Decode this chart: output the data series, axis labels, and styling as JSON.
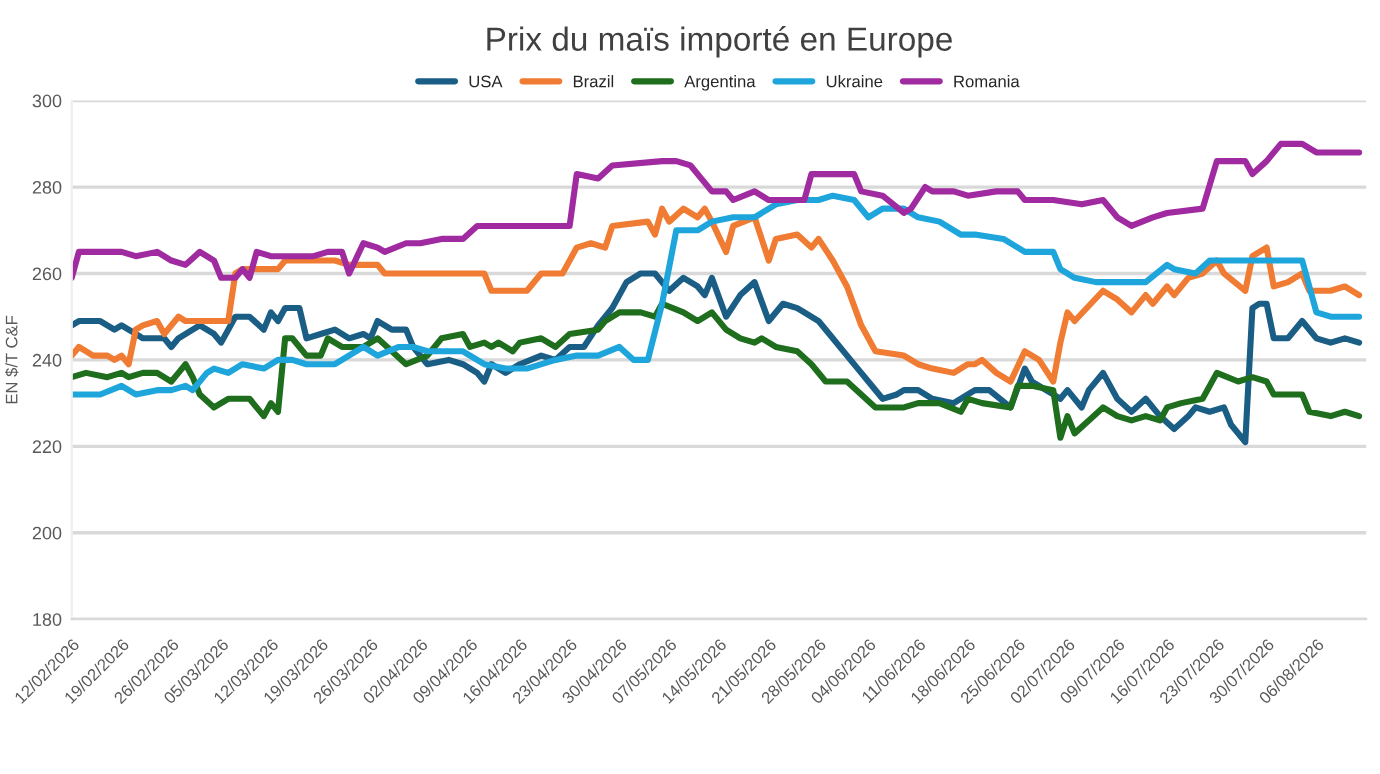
{
  "chart_data": {
    "type": "line",
    "title": "Prix du maïs importé en Europe",
    "ylabel": "EN $/T C&F",
    "xlim": [
      "2026-02-12",
      "2026-08-13"
    ],
    "ylim": [
      180,
      300
    ],
    "yticks": [
      180,
      200,
      220,
      240,
      260,
      280,
      300
    ],
    "xticks": [
      {
        "value": "2026-02-12",
        "label": "12/02/2026"
      },
      {
        "value": "2026-02-19",
        "label": "19/02/2026"
      },
      {
        "value": "2026-02-26",
        "label": "26/02/2026"
      },
      {
        "value": "2026-03-05",
        "label": "05/03/2026"
      },
      {
        "value": "2026-03-12",
        "label": "12/03/2026"
      },
      {
        "value": "2026-03-19",
        "label": "19/03/2026"
      },
      {
        "value": "2026-03-26",
        "label": "26/03/2026"
      },
      {
        "value": "2026-04-02",
        "label": "02/04/2026"
      },
      {
        "value": "2026-04-09",
        "label": "09/04/2026"
      },
      {
        "value": "2026-04-16",
        "label": "16/04/2026"
      },
      {
        "value": "2026-04-23",
        "label": "23/04/2026"
      },
      {
        "value": "2026-04-30",
        "label": "30/04/2026"
      },
      {
        "value": "2026-05-07",
        "label": "07/05/2026"
      },
      {
        "value": "2026-05-14",
        "label": "14/05/2026"
      },
      {
        "value": "2026-05-21",
        "label": "21/05/2026"
      },
      {
        "value": "2026-05-28",
        "label": "28/05/2026"
      },
      {
        "value": "2026-06-04",
        "label": "04/06/2026"
      },
      {
        "value": "2026-06-11",
        "label": "11/06/2026"
      },
      {
        "value": "2026-06-18",
        "label": "18/06/2026"
      },
      {
        "value": "2026-06-25",
        "label": "25/06/2026"
      },
      {
        "value": "2026-07-02",
        "label": "02/07/2026"
      },
      {
        "value": "2026-07-09",
        "label": "09/07/2026"
      },
      {
        "value": "2026-07-16",
        "label": "16/07/2026"
      },
      {
        "value": "2026-07-23",
        "label": "23/07/2026"
      },
      {
        "value": "2026-07-30",
        "label": "30/07/2026"
      },
      {
        "value": "2026-08-06",
        "label": "06/08/2026"
      }
    ],
    "grid": "y",
    "legend": "top",
    "marker": "none",
    "line_style": "solid",
    "series": [
      {
        "name": "USA",
        "color": "#1b5e85",
        "x": [
          "2026-02-12",
          "2026-02-13",
          "2026-02-16",
          "2026-02-18",
          "2026-02-19",
          "2026-02-21",
          "2026-02-22",
          "2026-02-25",
          "2026-02-26",
          "2026-02-27",
          "2026-03-01",
          "2026-03-02",
          "2026-03-04",
          "2026-03-05",
          "2026-03-06",
          "2026-03-07",
          "2026-03-09",
          "2026-03-11",
          "2026-03-12",
          "2026-03-13",
          "2026-03-14",
          "2026-03-16",
          "2026-03-17",
          "2026-03-19",
          "2026-03-21",
          "2026-03-23",
          "2026-03-25",
          "2026-03-26",
          "2026-03-27",
          "2026-03-29",
          "2026-03-31",
          "2026-04-01",
          "2026-04-03",
          "2026-04-06",
          "2026-04-08",
          "2026-04-10",
          "2026-04-11",
          "2026-04-12",
          "2026-04-14",
          "2026-04-16",
          "2026-04-19",
          "2026-04-21",
          "2026-04-23",
          "2026-04-25",
          "2026-04-27",
          "2026-04-29",
          "2026-05-01",
          "2026-05-03",
          "2026-05-05",
          "2026-05-07",
          "2026-05-09",
          "2026-05-11",
          "2026-05-12",
          "2026-05-13",
          "2026-05-15",
          "2026-05-17",
          "2026-05-19",
          "2026-05-21",
          "2026-05-23",
          "2026-05-25",
          "2026-05-26",
          "2026-05-28",
          "2026-05-30",
          "2026-06-01",
          "2026-06-03",
          "2026-06-04",
          "2026-06-06",
          "2026-06-08",
          "2026-06-09",
          "2026-06-11",
          "2026-06-13",
          "2026-06-16",
          "2026-06-18",
          "2026-06-19",
          "2026-06-21",
          "2026-06-24",
          "2026-06-26",
          "2026-06-27",
          "2026-06-30",
          "2026-07-01",
          "2026-07-02",
          "2026-07-04",
          "2026-07-05",
          "2026-07-07",
          "2026-07-09",
          "2026-07-11",
          "2026-07-13",
          "2026-07-15",
          "2026-07-17",
          "2026-07-19",
          "2026-07-20",
          "2026-07-22",
          "2026-07-24",
          "2026-07-25",
          "2026-07-27",
          "2026-07-28",
          "2026-07-29",
          "2026-07-30",
          "2026-07-31",
          "2026-08-02",
          "2026-08-04",
          "2026-08-06",
          "2026-08-08",
          "2026-08-10",
          "2026-08-12"
        ],
        "values": [
          248,
          249,
          249,
          247,
          248,
          246,
          245,
          245,
          243,
          245,
          247,
          248,
          246,
          244,
          247,
          250,
          250,
          247,
          251,
          249,
          252,
          252,
          245,
          246,
          247,
          245,
          246,
          245,
          249,
          247,
          247,
          243,
          239,
          240,
          239,
          237,
          235,
          239,
          237,
          239,
          241,
          240,
          243,
          243,
          248,
          252,
          258,
          260,
          260,
          256,
          259,
          257,
          255,
          259,
          250,
          255,
          258,
          249,
          253,
          252,
          251,
          249,
          245,
          241,
          237,
          235,
          231,
          232,
          233,
          233,
          231,
          230,
          232,
          233,
          233,
          229,
          238,
          235,
          232,
          231,
          233,
          229,
          233,
          237,
          231,
          228,
          231,
          227,
          224,
          227,
          229,
          228,
          229,
          225,
          221,
          252,
          253,
          253,
          245,
          245,
          249,
          245,
          244,
          245,
          244
        ]
      },
      {
        "name": "Brazil",
        "color": "#f07b32",
        "x": [
          "2026-02-12",
          "2026-02-13",
          "2026-02-15",
          "2026-02-17",
          "2026-02-18",
          "2026-02-19",
          "2026-02-20",
          "2026-02-21",
          "2026-02-22",
          "2026-02-24",
          "2026-02-25",
          "2026-02-27",
          "2026-02-28",
          "2026-03-06",
          "2026-03-07",
          "2026-03-08",
          "2026-03-13",
          "2026-03-14",
          "2026-03-21",
          "2026-03-23",
          "2026-03-27",
          "2026-03-28",
          "2026-04-03",
          "2026-04-08",
          "2026-04-11",
          "2026-04-12",
          "2026-04-17",
          "2026-04-19",
          "2026-04-22",
          "2026-04-24",
          "2026-04-26",
          "2026-04-28",
          "2026-04-29",
          "2026-05-04",
          "2026-05-05",
          "2026-05-06",
          "2026-05-07",
          "2026-05-09",
          "2026-05-11",
          "2026-05-12",
          "2026-05-13",
          "2026-05-15",
          "2026-05-16",
          "2026-05-19",
          "2026-05-20",
          "2026-05-21",
          "2026-05-22",
          "2026-05-25",
          "2026-05-27",
          "2026-05-28",
          "2026-05-30",
          "2026-06-01",
          "2026-06-03",
          "2026-06-05",
          "2026-06-09",
          "2026-06-11",
          "2026-06-13",
          "2026-06-16",
          "2026-06-18",
          "2026-06-19",
          "2026-06-20",
          "2026-06-22",
          "2026-06-24",
          "2026-06-26",
          "2026-06-28",
          "2026-06-30",
          "2026-07-01",
          "2026-07-02",
          "2026-07-03",
          "2026-07-07",
          "2026-07-09",
          "2026-07-11",
          "2026-07-13",
          "2026-07-14",
          "2026-07-16",
          "2026-07-17",
          "2026-07-19",
          "2026-07-21",
          "2026-07-23",
          "2026-07-24",
          "2026-07-27",
          "2026-07-28",
          "2026-07-30",
          "2026-07-31",
          "2026-08-02",
          "2026-08-04",
          "2026-08-05",
          "2026-08-08",
          "2026-08-10",
          "2026-08-12"
        ],
        "values": [
          241,
          243,
          241,
          241,
          240,
          241,
          239,
          247,
          248,
          249,
          246,
          250,
          249,
          249,
          260,
          261,
          261,
          263,
          263,
          262,
          262,
          260,
          260,
          260,
          260,
          256,
          256,
          260,
          260,
          266,
          267,
          266,
          271,
          272,
          269,
          275,
          272,
          275,
          273,
          275,
          272,
          265,
          271,
          273,
          268,
          263,
          268,
          269,
          266,
          268,
          263,
          257,
          248,
          242,
          241,
          239,
          238,
          237,
          239,
          239,
          240,
          237,
          235,
          242,
          240,
          235,
          244,
          251,
          249,
          256,
          254,
          251,
          255,
          253,
          257,
          255,
          259,
          260,
          263,
          260,
          256,
          264,
          266,
          257,
          258,
          260,
          256,
          256,
          257,
          255
        ]
      },
      {
        "name": "Argentina",
        "color": "#1e6e1e",
        "x": [
          "2026-02-12",
          "2026-02-14",
          "2026-02-17",
          "2026-02-19",
          "2026-02-20",
          "2026-02-22",
          "2026-02-24",
          "2026-02-26",
          "2026-02-27",
          "2026-02-28",
          "2026-03-01",
          "2026-03-02",
          "2026-03-04",
          "2026-03-06",
          "2026-03-09",
          "2026-03-11",
          "2026-03-12",
          "2026-03-13",
          "2026-03-14",
          "2026-03-15",
          "2026-03-17",
          "2026-03-19",
          "2026-03-20",
          "2026-03-22",
          "2026-03-25",
          "2026-03-27",
          "2026-03-29",
          "2026-03-31",
          "2026-04-03",
          "2026-04-05",
          "2026-04-08",
          "2026-04-09",
          "2026-04-11",
          "2026-04-12",
          "2026-04-13",
          "2026-04-15",
          "2026-04-16",
          "2026-04-19",
          "2026-04-21",
          "2026-04-23",
          "2026-04-27",
          "2026-04-28",
          "2026-04-30",
          "2026-05-03",
          "2026-05-05",
          "2026-05-06",
          "2026-05-09",
          "2026-05-11",
          "2026-05-13",
          "2026-05-15",
          "2026-05-17",
          "2026-05-19",
          "2026-05-20",
          "2026-05-22",
          "2026-05-25",
          "2026-05-27",
          "2026-05-29",
          "2026-06-01",
          "2026-06-03",
          "2026-06-05",
          "2026-06-09",
          "2026-06-11",
          "2026-06-14",
          "2026-06-17",
          "2026-06-18",
          "2026-06-20",
          "2026-06-24",
          "2026-06-25",
          "2026-06-27",
          "2026-06-30",
          "2026-07-01",
          "2026-07-02",
          "2026-07-03",
          "2026-07-05",
          "2026-07-07",
          "2026-07-09",
          "2026-07-11",
          "2026-07-13",
          "2026-07-15",
          "2026-07-16",
          "2026-07-18",
          "2026-07-21",
          "2026-07-23",
          "2026-07-26",
          "2026-07-28",
          "2026-07-30",
          "2026-07-31",
          "2026-08-04",
          "2026-08-05",
          "2026-08-08",
          "2026-08-10",
          "2026-08-12"
        ],
        "values": [
          236,
          237,
          236,
          237,
          236,
          237,
          237,
          235,
          237,
          239,
          236,
          232,
          229,
          231,
          231,
          227,
          230,
          228,
          245,
          245,
          241,
          241,
          245,
          243,
          243,
          245,
          242,
          239,
          241,
          245,
          246,
          243,
          244,
          243,
          244,
          242,
          244,
          245,
          243,
          246,
          247,
          249,
          251,
          251,
          250,
          253,
          251,
          249,
          251,
          247,
          245,
          244,
          245,
          243,
          242,
          239,
          235,
          235,
          232,
          229,
          229,
          230,
          230,
          228,
          231,
          230,
          229,
          234,
          234,
          233,
          222,
          227,
          223,
          226,
          229,
          227,
          226,
          227,
          226,
          229,
          230,
          231,
          237,
          235,
          236,
          235,
          232,
          232,
          228,
          227,
          228,
          227
        ]
      },
      {
        "name": "Ukraine",
        "color": "#1ea5dc",
        "x": [
          "2026-02-12",
          "2026-02-16",
          "2026-02-19",
          "2026-02-21",
          "2026-02-24",
          "2026-02-26",
          "2026-02-28",
          "2026-03-01",
          "2026-03-03",
          "2026-03-04",
          "2026-03-06",
          "2026-03-08",
          "2026-03-11",
          "2026-03-13",
          "2026-03-15",
          "2026-03-17",
          "2026-03-19",
          "2026-03-21",
          "2026-03-25",
          "2026-03-27",
          "2026-03-30",
          "2026-04-01",
          "2026-04-03",
          "2026-04-06",
          "2026-04-08",
          "2026-04-11",
          "2026-04-14",
          "2026-04-17",
          "2026-04-21",
          "2026-04-24",
          "2026-04-27",
          "2026-04-30",
          "2026-05-02",
          "2026-05-04",
          "2026-05-06",
          "2026-05-08",
          "2026-05-11",
          "2026-05-13",
          "2026-05-16",
          "2026-05-19",
          "2026-05-22",
          "2026-05-25",
          "2026-05-28",
          "2026-05-30",
          "2026-06-02",
          "2026-06-04",
          "2026-06-06",
          "2026-06-09",
          "2026-06-11",
          "2026-06-14",
          "2026-06-17",
          "2026-06-19",
          "2026-06-23",
          "2026-06-26",
          "2026-06-30",
          "2026-07-01",
          "2026-07-03",
          "2026-07-06",
          "2026-07-09",
          "2026-07-13",
          "2026-07-16",
          "2026-07-17",
          "2026-07-20",
          "2026-07-22",
          "2026-07-25",
          "2026-07-30",
          "2026-08-01",
          "2026-08-04",
          "2026-08-06",
          "2026-08-08",
          "2026-08-12"
        ],
        "values": [
          232,
          232,
          234,
          232,
          233,
          233,
          234,
          233,
          237,
          238,
          237,
          239,
          238,
          240,
          240,
          239,
          239,
          239,
          243,
          241,
          243,
          243,
          242,
          242,
          242,
          239,
          238,
          238,
          240,
          241,
          241,
          243,
          240,
          240,
          253,
          270,
          270,
          272,
          273,
          273,
          276,
          277,
          277,
          278,
          277,
          273,
          275,
          275,
          273,
          272,
          269,
          269,
          268,
          265,
          265,
          261,
          259,
          258,
          258,
          258,
          262,
          261,
          260,
          263,
          263,
          263,
          263,
          263,
          251,
          250,
          250
        ]
      },
      {
        "name": "Romania",
        "color": "#a02aa0",
        "x": [
          "2026-02-12",
          "2026-02-13",
          "2026-02-15",
          "2026-02-17",
          "2026-02-19",
          "2026-02-21",
          "2026-02-24",
          "2026-02-26",
          "2026-02-28",
          "2026-03-02",
          "2026-03-04",
          "2026-03-05",
          "2026-03-07",
          "2026-03-08",
          "2026-03-09",
          "2026-03-10",
          "2026-03-12",
          "2026-03-18",
          "2026-03-20",
          "2026-03-22",
          "2026-03-23",
          "2026-03-25",
          "2026-03-27",
          "2026-03-28",
          "2026-03-31",
          "2026-04-02",
          "2026-04-05",
          "2026-04-08",
          "2026-04-10",
          "2026-04-14",
          "2026-04-16",
          "2026-04-19",
          "2026-04-23",
          "2026-04-24",
          "2026-04-27",
          "2026-04-29",
          "2026-05-06",
          "2026-05-08",
          "2026-05-10",
          "2026-05-11",
          "2026-05-13",
          "2026-05-15",
          "2026-05-16",
          "2026-05-19",
          "2026-05-21",
          "2026-05-24",
          "2026-05-26",
          "2026-05-27",
          "2026-05-31",
          "2026-06-02",
          "2026-06-03",
          "2026-06-06",
          "2026-06-09",
          "2026-06-10",
          "2026-06-12",
          "2026-06-13",
          "2026-06-16",
          "2026-06-18",
          "2026-06-22",
          "2026-06-25",
          "2026-06-26",
          "2026-06-30",
          "2026-07-04",
          "2026-07-07",
          "2026-07-09",
          "2026-07-11",
          "2026-07-14",
          "2026-07-16",
          "2026-07-21",
          "2026-07-23",
          "2026-07-27",
          "2026-07-28",
          "2026-07-30",
          "2026-08-01",
          "2026-08-04",
          "2026-08-06",
          "2026-08-12"
        ],
        "values": [
          259,
          265,
          265,
          265,
          265,
          264,
          265,
          263,
          262,
          265,
          263,
          259,
          259,
          261,
          259,
          265,
          264,
          264,
          265,
          265,
          260,
          267,
          266,
          265,
          267,
          267,
          268,
          268,
          271,
          271,
          271,
          271,
          271,
          283,
          282,
          285,
          286,
          286,
          285,
          283,
          279,
          279,
          277,
          279,
          277,
          277,
          277,
          283,
          283,
          283,
          279,
          278,
          274,
          275,
          280,
          279,
          279,
          278,
          279,
          279,
          277,
          277,
          276,
          277,
          273,
          271,
          273,
          274,
          275,
          286,
          286,
          283,
          286,
          290,
          290,
          288,
          288
        ]
      }
    ]
  }
}
